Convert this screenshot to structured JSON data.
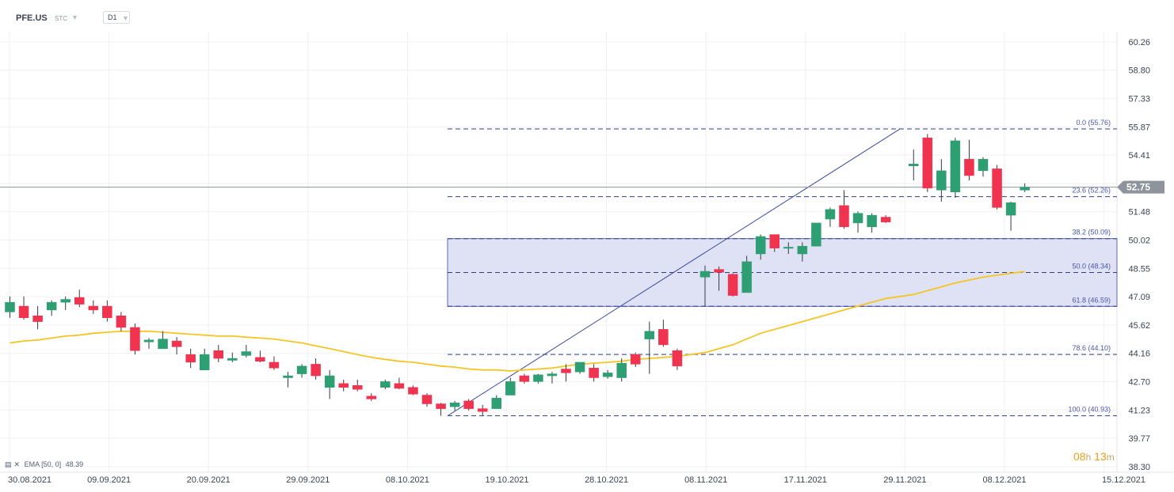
{
  "header": {
    "symbol": "PFE.US",
    "symbol_sub": "STC",
    "timeframe": "D1"
  },
  "ema_legend": {
    "text": "EMA [50, 0]",
    "value": "48.39"
  },
  "countdown": {
    "hours": "08",
    "h": "h",
    "minutes": "13",
    "m": "m"
  },
  "colors": {
    "up": "#2e9e73",
    "down": "#f0334f",
    "ema": "#f5c524",
    "fib_line": "#2f3c8e",
    "fib_zone": "#dfe2f4",
    "trend_line": "#3c4aa0",
    "price_line": "#8e949c",
    "price_badge": "#8e949c",
    "countdown": "#e8a11a"
  },
  "chart_data": {
    "type": "candlestick",
    "y_axis": {
      "range": [
        38.3,
        61.0
      ],
      "ticks": [
        "60.26",
        "58.80",
        "57.33",
        "55.87",
        "54.41",
        "52.94",
        "51.48",
        "50.02",
        "48.55",
        "47.09",
        "45.62",
        "44.16",
        "42.70",
        "41.23",
        "39.77",
        "38.30"
      ]
    },
    "x_axis": {
      "tick_labels": [
        "30.08.2021",
        "09.09.2021",
        "20.09.2021",
        "29.09.2021",
        "08.10.2021",
        "19.10.2021",
        "28.10.2021",
        "08.11.2021",
        "17.11.2021",
        "29.11.2021",
        "08.12.2021",
        "15.12.2021"
      ]
    },
    "current_price": "52.75",
    "fibonacci": {
      "swing_low": 40.93,
      "swing_high": 55.76,
      "levels": [
        {
          "label": "0.0 (55.76)",
          "value": 55.76
        },
        {
          "label": "23.6 (52.26)",
          "value": 52.26
        },
        {
          "label": "38.2 (50.09)",
          "value": 50.09
        },
        {
          "label": "50.0 (48.34)",
          "value": 48.34
        },
        {
          "label": "61.8 (46.59)",
          "value": 46.59
        },
        {
          "label": "78.6 (44.10)",
          "value": 44.1
        },
        {
          "label": "100.0 (40.93)",
          "value": 40.93
        }
      ],
      "zone": [
        46.59,
        50.09
      ]
    },
    "candles": [
      {
        "o": 46.3,
        "h": 47.1,
        "l": 46.0,
        "c": 46.8
      },
      {
        "o": 46.6,
        "h": 47.1,
        "l": 45.9,
        "c": 46.0
      },
      {
        "o": 46.1,
        "h": 46.6,
        "l": 45.4,
        "c": 45.8
      },
      {
        "o": 46.4,
        "h": 46.9,
        "l": 46.1,
        "c": 46.8
      },
      {
        "o": 46.8,
        "h": 47.1,
        "l": 46.4,
        "c": 46.95
      },
      {
        "o": 47.05,
        "h": 47.45,
        "l": 46.55,
        "c": 46.7
      },
      {
        "o": 46.6,
        "h": 46.9,
        "l": 46.2,
        "c": 46.4
      },
      {
        "o": 46.6,
        "h": 46.9,
        "l": 45.8,
        "c": 46.0
      },
      {
        "o": 46.1,
        "h": 46.3,
        "l": 45.3,
        "c": 45.5
      },
      {
        "o": 45.5,
        "h": 45.7,
        "l": 44.1,
        "c": 44.3
      },
      {
        "o": 44.75,
        "h": 44.95,
        "l": 44.4,
        "c": 44.85
      },
      {
        "o": 44.4,
        "h": 45.3,
        "l": 44.4,
        "c": 44.9
      },
      {
        "o": 44.8,
        "h": 45.0,
        "l": 44.1,
        "c": 44.5
      },
      {
        "o": 44.1,
        "h": 44.4,
        "l": 43.4,
        "c": 43.7
      },
      {
        "o": 43.3,
        "h": 44.4,
        "l": 43.3,
        "c": 44.1
      },
      {
        "o": 44.3,
        "h": 44.6,
        "l": 43.7,
        "c": 43.9
      },
      {
        "o": 43.8,
        "h": 44.2,
        "l": 43.7,
        "c": 43.9
      },
      {
        "o": 44.05,
        "h": 44.6,
        "l": 43.95,
        "c": 44.25
      },
      {
        "o": 43.95,
        "h": 44.3,
        "l": 43.7,
        "c": 43.75
      },
      {
        "o": 43.7,
        "h": 44.0,
        "l": 43.3,
        "c": 43.4
      },
      {
        "o": 42.9,
        "h": 43.2,
        "l": 42.4,
        "c": 43.0
      },
      {
        "o": 43.1,
        "h": 43.6,
        "l": 42.9,
        "c": 43.5
      },
      {
        "o": 43.6,
        "h": 43.9,
        "l": 42.8,
        "c": 43.0
      },
      {
        "o": 42.4,
        "h": 43.3,
        "l": 41.8,
        "c": 43.0
      },
      {
        "o": 42.6,
        "h": 42.8,
        "l": 42.2,
        "c": 42.4
      },
      {
        "o": 42.5,
        "h": 42.8,
        "l": 42.2,
        "c": 42.3
      },
      {
        "o": 41.95,
        "h": 42.1,
        "l": 41.7,
        "c": 41.8
      },
      {
        "o": 42.4,
        "h": 42.8,
        "l": 42.3,
        "c": 42.7
      },
      {
        "o": 42.6,
        "h": 42.9,
        "l": 42.3,
        "c": 42.35
      },
      {
        "o": 42.4,
        "h": 42.5,
        "l": 42.0,
        "c": 42.05
      },
      {
        "o": 42.0,
        "h": 42.1,
        "l": 41.4,
        "c": 41.55
      },
      {
        "o": 41.55,
        "h": 41.6,
        "l": 40.93,
        "c": 41.3
      },
      {
        "o": 41.4,
        "h": 41.7,
        "l": 41.2,
        "c": 41.6
      },
      {
        "o": 41.7,
        "h": 41.8,
        "l": 41.2,
        "c": 41.3
      },
      {
        "o": 41.3,
        "h": 41.5,
        "l": 40.95,
        "c": 41.15
      },
      {
        "o": 41.3,
        "h": 42.0,
        "l": 41.3,
        "c": 41.85
      },
      {
        "o": 42.0,
        "h": 42.9,
        "l": 42.0,
        "c": 42.7
      },
      {
        "o": 43.0,
        "h": 43.1,
        "l": 42.6,
        "c": 42.7
      },
      {
        "o": 42.7,
        "h": 43.1,
        "l": 42.6,
        "c": 43.05
      },
      {
        "o": 43.0,
        "h": 43.2,
        "l": 42.6,
        "c": 43.1
      },
      {
        "o": 43.35,
        "h": 43.6,
        "l": 42.7,
        "c": 43.15
      },
      {
        "o": 43.2,
        "h": 43.7,
        "l": 43.1,
        "c": 43.7
      },
      {
        "o": 43.4,
        "h": 43.6,
        "l": 42.7,
        "c": 42.9
      },
      {
        "o": 42.95,
        "h": 43.3,
        "l": 42.85,
        "c": 43.15
      },
      {
        "o": 42.9,
        "h": 43.9,
        "l": 42.7,
        "c": 43.65
      },
      {
        "o": 44.1,
        "h": 44.2,
        "l": 43.45,
        "c": 43.6
      },
      {
        "o": 44.9,
        "h": 45.8,
        "l": 43.1,
        "c": 45.3
      },
      {
        "o": 45.4,
        "h": 45.9,
        "l": 44.5,
        "c": 44.6
      },
      {
        "o": 44.3,
        "h": 44.4,
        "l": 43.3,
        "c": 43.5
      },
      {
        "o": 48.1,
        "h": 48.7,
        "l": 46.6,
        "c": 48.4
      },
      {
        "o": 48.5,
        "h": 48.65,
        "l": 47.4,
        "c": 48.35
      },
      {
        "o": 48.25,
        "h": 48.3,
        "l": 47.1,
        "c": 47.15
      },
      {
        "o": 47.3,
        "h": 49.2,
        "l": 47.3,
        "c": 48.9
      },
      {
        "o": 49.3,
        "h": 50.3,
        "l": 49.0,
        "c": 50.2
      },
      {
        "o": 50.3,
        "h": 50.3,
        "l": 49.4,
        "c": 49.6
      },
      {
        "o": 49.6,
        "h": 49.9,
        "l": 49.3,
        "c": 49.65
      },
      {
        "o": 49.3,
        "h": 49.9,
        "l": 48.9,
        "c": 49.7
      },
      {
        "o": 49.7,
        "h": 50.9,
        "l": 49.7,
        "c": 50.9
      },
      {
        "o": 51.1,
        "h": 51.7,
        "l": 50.7,
        "c": 51.6
      },
      {
        "o": 51.8,
        "h": 52.6,
        "l": 50.6,
        "c": 50.7
      },
      {
        "o": 50.9,
        "h": 51.5,
        "l": 50.4,
        "c": 51.4
      },
      {
        "o": 50.7,
        "h": 51.4,
        "l": 50.4,
        "c": 51.3
      },
      {
        "o": 51.2,
        "h": 51.3,
        "l": 50.9,
        "c": 50.95
      },
      {
        "o": 53.85,
        "h": 54.7,
        "l": 53.1,
        "c": 53.95
      },
      {
        "o": 55.3,
        "h": 55.5,
        "l": 52.5,
        "c": 52.7
      },
      {
        "o": 52.6,
        "h": 54.2,
        "l": 52.0,
        "c": 53.6
      },
      {
        "o": 52.5,
        "h": 55.3,
        "l": 52.2,
        "c": 55.15
      },
      {
        "o": 54.2,
        "h": 55.2,
        "l": 53.1,
        "c": 53.35
      },
      {
        "o": 53.6,
        "h": 54.3,
        "l": 53.3,
        "c": 54.2
      },
      {
        "o": 53.7,
        "h": 53.9,
        "l": 51.6,
        "c": 51.7
      },
      {
        "o": 51.3,
        "h": 52.0,
        "l": 50.5,
        "c": 51.95
      },
      {
        "o": 52.6,
        "h": 52.95,
        "l": 52.5,
        "c": 52.75
      }
    ],
    "ema": [
      44.7,
      44.8,
      44.85,
      44.95,
      45.05,
      45.1,
      45.2,
      45.25,
      45.3,
      45.3,
      45.3,
      45.25,
      45.2,
      45.15,
      45.1,
      45.05,
      45.05,
      45.0,
      44.95,
      44.9,
      44.8,
      44.7,
      44.55,
      44.4,
      44.25,
      44.1,
      43.95,
      43.85,
      43.75,
      43.7,
      43.6,
      43.5,
      43.45,
      43.35,
      43.3,
      43.3,
      43.25,
      43.3,
      43.35,
      43.4,
      43.5,
      43.6,
      43.65,
      43.7,
      43.75,
      43.85,
      43.9,
      43.95,
      44.0,
      44.2,
      44.4,
      44.6,
      44.9,
      45.2,
      45.4,
      45.6,
      45.8,
      46.0,
      46.2,
      46.4,
      46.6,
      46.8,
      47.0,
      47.2,
      47.4,
      47.6,
      47.8,
      47.95,
      48.1,
      48.2,
      48.3,
      48.39
    ]
  }
}
